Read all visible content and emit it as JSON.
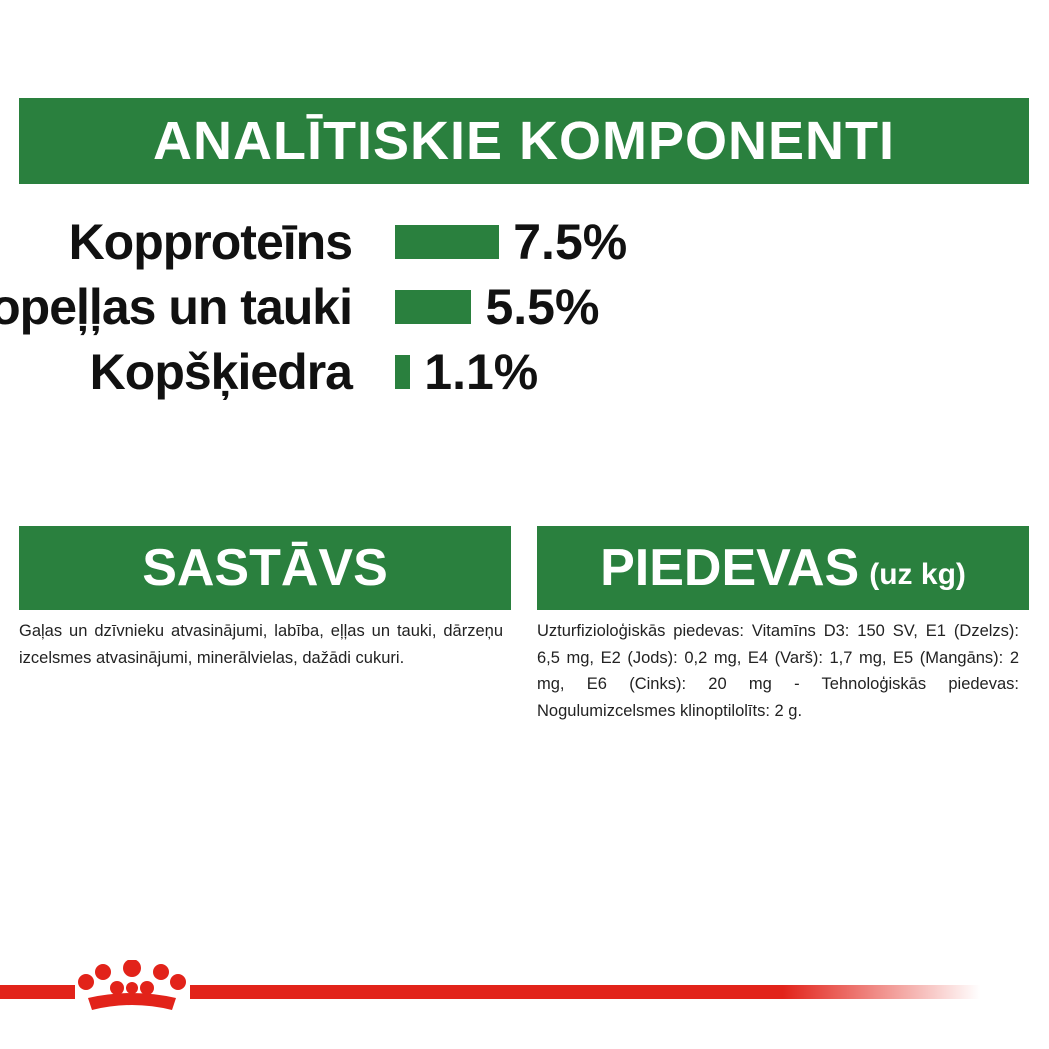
{
  "analysis": {
    "title": "ANALĪTISKIE KOMPONENTI",
    "color": "#2a803e",
    "rows": [
      {
        "label": "Kopproteīns",
        "value": 7.5,
        "value_label": "7.5%"
      },
      {
        "label": "Kopeļļas un tauki",
        "value": 5.5,
        "value_label": "5.5%"
      },
      {
        "label": "Kopšķiedra",
        "value": 1.1,
        "value_label": "1.1%"
      }
    ]
  },
  "composition": {
    "title": "SASTĀVS",
    "text": "Gaļas un dzīvnieku atvasinājumi, labība, eļļas un tauki, dārzeņu izcelsmes atvasinājumi, minerālvielas, dažādi cukuri."
  },
  "additives": {
    "title": "PIEDEVAS",
    "subtitle": "(uz kg)",
    "text": "Uzturfizioloģiskās piedevas: Vitamīns D3: 150 SV, E1 (Dzelzs): 6,5 mg, E2 (Jods): 0,2 mg, E4 (Varš): 1,7 mg, E5 (Mangāns): 2 mg, E6 (Cinks): 20 mg - Tehnoloģiskās piedevas: Nogulumizcelsmes klinoptilolīts: 2 g."
  }
}
